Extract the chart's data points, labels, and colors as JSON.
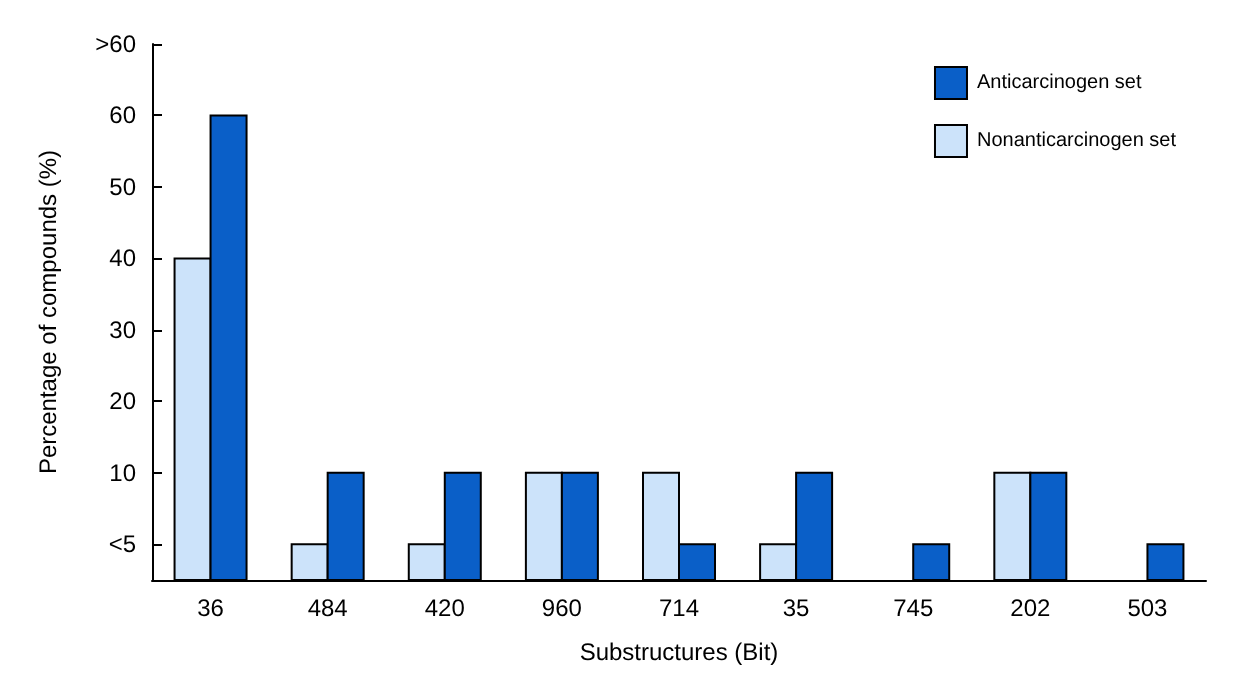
{
  "chart_data": {
    "type": "bar",
    "xlabel": "Substructures (Bit)",
    "ylabel": "Percentage of compounds (%)",
    "categories": [
      "36",
      "484",
      "420",
      "960",
      "714",
      "35",
      "745",
      "202",
      "503"
    ],
    "series": [
      {
        "name": "Nonanticarcinogen set",
        "color": "#cce3fa",
        "base": [
          -5,
          -5,
          -5,
          -5,
          -5,
          -5,
          null,
          -5,
          null
        ],
        "values": [
          45,
          5,
          5,
          15,
          15,
          5,
          null,
          15,
          null
        ]
      },
      {
        "name": "Anticarcinogen set",
        "color": "#0a5fc8",
        "base": [
          -5,
          -5,
          -5,
          -5,
          -5,
          -5,
          -5,
          -5,
          -5
        ],
        "values": [
          65,
          15,
          15,
          15,
          5,
          15,
          5,
          15,
          5
        ]
      }
    ],
    "ylim": [
      -5,
      70
    ],
    "yticks": [
      {
        "value": 0,
        "label": "<5"
      },
      10,
      20,
      30,
      40,
      50,
      60,
      {
        "value": 70,
        "label": ">60"
      }
    ],
    "grid": false,
    "legend": "top right"
  }
}
